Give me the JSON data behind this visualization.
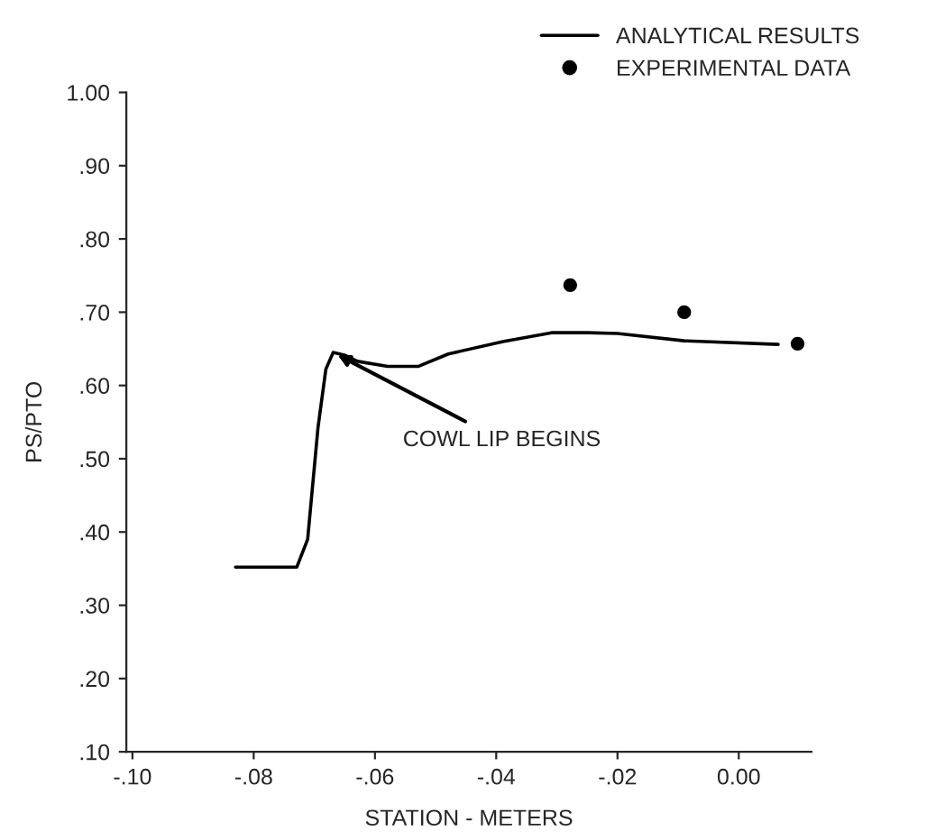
{
  "chart_data": {
    "type": "line",
    "xlabel": "STATION - METERS",
    "ylabel": "PS/PTO",
    "series": [
      {
        "name": "ANALYTICAL RESULTS",
        "color": "#000000",
        "marker": "none",
        "line_style": "solid",
        "x": [
          -0.083,
          -0.0729,
          -0.0711,
          -0.0694,
          -0.0681,
          -0.0669,
          -0.0649,
          -0.0629,
          -0.0579,
          -0.0529,
          -0.0479,
          -0.0389,
          -0.0309,
          -0.0249,
          -0.02,
          -0.009,
          0.0065
        ],
        "values": [
          0.352,
          0.352,
          0.39,
          0.542,
          0.622,
          0.645,
          0.641,
          0.633,
          0.626,
          0.626,
          0.643,
          0.66,
          0.672,
          0.672,
          0.671,
          0.661,
          0.656
        ]
      },
      {
        "name": "EXPERIMENTAL DATA",
        "type": "scatter",
        "color": "#000000",
        "marker": "circle",
        "x": [
          -0.0278,
          -0.009,
          0.0097
        ],
        "values": [
          0.737,
          0.7,
          0.657
        ]
      }
    ],
    "xlim": [
      -0.101,
      0.012
    ],
    "xticks": [
      {
        "value": -0.1,
        "label": "-.10"
      },
      {
        "value": -0.08,
        "label": "-.08"
      },
      {
        "value": -0.06,
        "label": "-.06"
      },
      {
        "value": -0.04,
        "label": "-.04"
      },
      {
        "value": -0.02,
        "label": "-.02"
      },
      {
        "value": 0.0,
        "label": "0.00"
      }
    ],
    "ylim": [
      0.1,
      1.0
    ],
    "yticks": [
      {
        "value": 0.1,
        "label": ".10"
      },
      {
        "value": 0.2,
        "label": ".20"
      },
      {
        "value": 0.3,
        "label": ".30"
      },
      {
        "value": 0.4,
        "label": ".40"
      },
      {
        "value": 0.5,
        "label": ".50"
      },
      {
        "value": 0.6,
        "label": ".60"
      },
      {
        "value": 0.7,
        "label": ".70"
      },
      {
        "value": 0.8,
        "label": ".80"
      },
      {
        "value": 0.9,
        "label": ".90"
      },
      {
        "value": 1.0,
        "label": "1.00"
      }
    ],
    "annotations": [
      {
        "text": "COWL LIP BEGINS",
        "x": -0.0669,
        "y": 0.645
      }
    ],
    "legend": "top right",
    "grid": false
  }
}
